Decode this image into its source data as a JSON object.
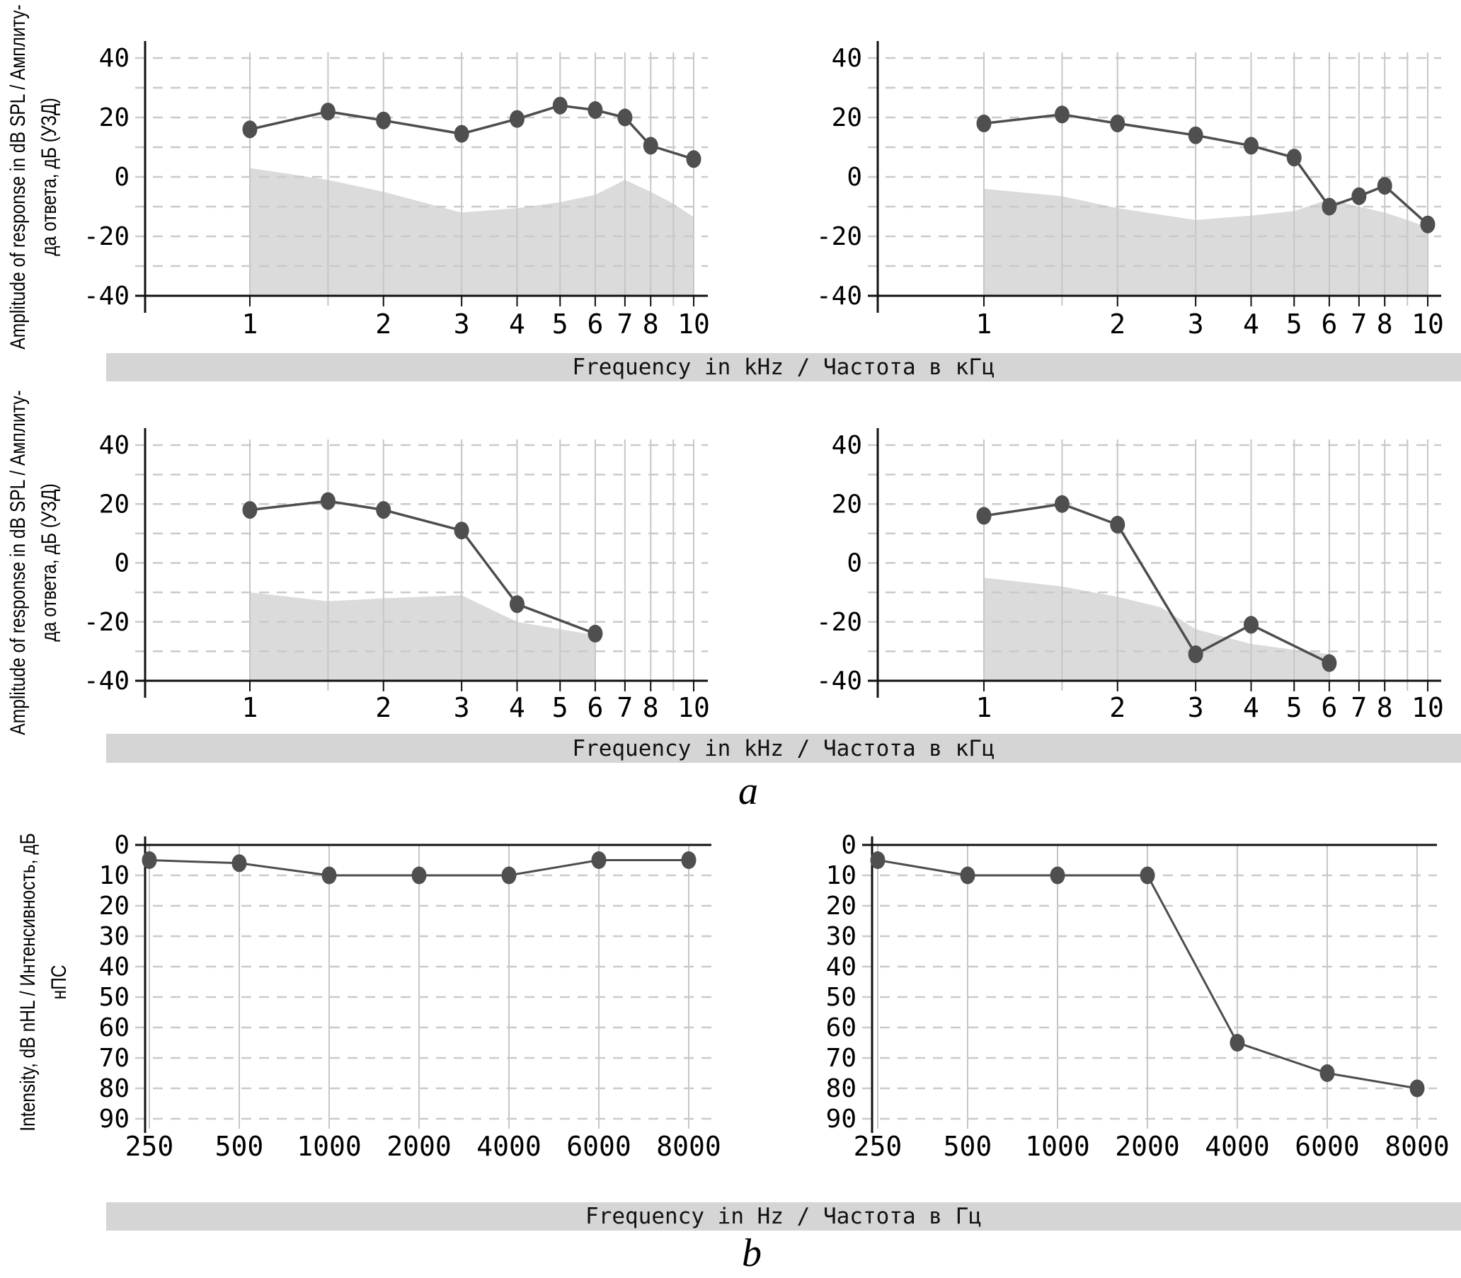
{
  "page": {
    "background": "#ffffff",
    "kind": "scientific figure with six audiology charts"
  },
  "colors": {
    "grid_vertical": "#c6c6c6",
    "grid_dashed": "#cacaca",
    "axis": "#111111",
    "series_line": "#4d4d4d",
    "marker_fill": "#4f4f4f",
    "noise_area_fill": "#dbdbdb",
    "band_background": "#d5d5d5",
    "text": "#000000"
  },
  "y_axis_labels": {
    "oae_row1": {
      "line1": "Amplitude of response in dB SPL / Амплиту-",
      "line2": "да ответа, дБ (УЗД)"
    },
    "oae_row2": {
      "line1": "Amplitude of response in dB SPL / Амплиту-",
      "line2": "да ответа, дБ (УЗД)"
    },
    "audiogram": {
      "line1": "Intensity, dB nHL / Интенсивность, дБ",
      "line2": "нПС"
    }
  },
  "x_axis_bands": {
    "row1": "Frequency in kHz / Частота в кГц",
    "row2": "Frequency in kHz / Частота в кГц",
    "row3": "Frequency in Hz / Частота в Гц"
  },
  "section_labels": {
    "a": "a",
    "b": "b"
  },
  "chart_data": [
    {
      "id": "oae-top-left",
      "type": "line",
      "x_scale": "log",
      "xlabel": "Frequency in kHz / Частота в кГц",
      "ylabel": "Amplitude of response in dB SPL / Амплитуда ответа, дБ (УЗД)",
      "xlim": [
        1,
        10
      ],
      "ylim": [
        -40,
        40
      ],
      "x_ticks_labeled": [
        1,
        2,
        3,
        4,
        5,
        6,
        7,
        8,
        10
      ],
      "x_gridlines": [
        1,
        1.5,
        2,
        3,
        4,
        5,
        6,
        7,
        8,
        9,
        10
      ],
      "y_ticks_labeled": [
        40,
        20,
        0,
        -20,
        -40
      ],
      "y_gridline_step": 10,
      "series": [
        {
          "name": "oae_response",
          "x": [
            1,
            1.5,
            2,
            3,
            4,
            5,
            6,
            7,
            8,
            10
          ],
          "y": [
            16,
            22,
            19,
            14.5,
            19.5,
            24,
            22.5,
            20,
            10.5,
            6
          ]
        }
      ],
      "noise_floor_area": {
        "x": [
          1,
          1.5,
          2,
          3,
          4,
          5,
          6,
          7,
          8,
          9,
          10
        ],
        "y": [
          3,
          -1,
          -5,
          -12,
          -10.5,
          -8.5,
          -6,
          -1,
          -5,
          -9,
          -13.5
        ]
      }
    },
    {
      "id": "oae-top-right",
      "type": "line",
      "x_scale": "log",
      "xlabel": "Frequency in kHz / Частота в кГц",
      "ylabel": "Amplitude of response in dB SPL / Амплитуда ответа, дБ (УЗД)",
      "xlim": [
        1,
        10
      ],
      "ylim": [
        -40,
        40
      ],
      "x_ticks_labeled": [
        1,
        2,
        3,
        4,
        5,
        6,
        7,
        8,
        10
      ],
      "x_gridlines": [
        1,
        1.5,
        2,
        3,
        4,
        5,
        6,
        7,
        8,
        9,
        10
      ],
      "y_ticks_labeled": [
        40,
        20,
        0,
        -20,
        -40
      ],
      "y_gridline_step": 10,
      "series": [
        {
          "name": "oae_response",
          "x": [
            1,
            1.5,
            2,
            3,
            4,
            5,
            6,
            7,
            8,
            10
          ],
          "y": [
            18,
            21,
            18,
            14,
            10.5,
            6.5,
            -10,
            -6.5,
            -3,
            -16
          ]
        }
      ],
      "noise_floor_area": {
        "x": [
          1,
          1.5,
          2,
          3,
          4,
          5,
          6,
          7,
          8,
          9,
          10
        ],
        "y": [
          -4,
          -6.5,
          -10.5,
          -14.5,
          -13,
          -11.5,
          -7.5,
          -10,
          -12,
          -14.5,
          -17
        ]
      }
    },
    {
      "id": "oae-middle-left",
      "type": "line",
      "x_scale": "log",
      "xlabel": "Frequency in kHz / Частота в кГц",
      "ylabel": "Amplitude of response in dB SPL / Амплитуда ответа, дБ (УЗД)",
      "xlim": [
        1,
        10
      ],
      "ylim": [
        -40,
        40
      ],
      "x_ticks_labeled": [
        1,
        2,
        3,
        4,
        5,
        6,
        7,
        8,
        10
      ],
      "x_gridlines": [
        1,
        1.5,
        2,
        3,
        4,
        5,
        6,
        7,
        8,
        9,
        10
      ],
      "y_ticks_labeled": [
        40,
        20,
        0,
        -20,
        -40
      ],
      "y_gridline_step": 10,
      "series": [
        {
          "name": "oae_response",
          "x": [
            1,
            1.5,
            2,
            3,
            4,
            6
          ],
          "y": [
            18,
            21,
            18,
            11,
            -14,
            -24
          ]
        }
      ],
      "noise_floor_area": {
        "x": [
          1,
          1.5,
          2,
          3,
          4,
          5,
          6
        ],
        "y": [
          -10,
          -13,
          -12,
          -11,
          -20,
          -22.5,
          -24.5
        ]
      }
    },
    {
      "id": "oae-middle-right",
      "type": "line",
      "x_scale": "log",
      "xlabel": "Frequency in kHz / Частота в кГц",
      "ylabel": "Amplitude of response in dB SPL / Амплитуда ответа, дБ (УЗД)",
      "xlim": [
        1,
        10
      ],
      "ylim": [
        -40,
        40
      ],
      "x_ticks_labeled": [
        1,
        2,
        3,
        4,
        5,
        6,
        7,
        8,
        10
      ],
      "x_gridlines": [
        1,
        1.5,
        2,
        3,
        4,
        5,
        6,
        7,
        8,
        9,
        10
      ],
      "y_ticks_labeled": [
        40,
        20,
        0,
        -20,
        -40
      ],
      "y_gridline_step": 10,
      "series": [
        {
          "name": "oae_response",
          "x": [
            1,
            1.5,
            2,
            3,
            4,
            6
          ],
          "y": [
            16,
            20,
            13,
            -31,
            -21,
            -34
          ]
        }
      ],
      "noise_floor_area": {
        "x": [
          1,
          1.5,
          2,
          2.5,
          3,
          4,
          5,
          6
        ],
        "y": [
          -5,
          -8,
          -11.5,
          -15,
          -22.5,
          -27.5,
          -29.5,
          -31
        ]
      }
    },
    {
      "id": "audiogram-bottom-left",
      "type": "line",
      "x_scale": "categorical",
      "xlabel": "Frequency in Hz / Частота в Гц",
      "ylabel": "Intensity, dB nHL / Интенсивность, дБ нПС",
      "ylim": [
        0,
        90
      ],
      "y_inverted": true,
      "categories": [
        250,
        500,
        1000,
        2000,
        4000,
        6000,
        8000
      ],
      "y_ticks_labeled": [
        0,
        10,
        20,
        30,
        40,
        50,
        60,
        70,
        80,
        90
      ],
      "y_gridline_step": 10,
      "series": [
        {
          "name": "hearing_threshold",
          "values": [
            5,
            6,
            10,
            10,
            10,
            5,
            5
          ]
        }
      ]
    },
    {
      "id": "audiogram-bottom-right",
      "type": "line",
      "x_scale": "categorical",
      "xlabel": "Frequency in Hz / Частота в Гц",
      "ylabel": "Intensity, dB nHL / Интенсивность, дБ нПС",
      "ylim": [
        0,
        90
      ],
      "y_inverted": true,
      "categories": [
        250,
        500,
        1000,
        2000,
        4000,
        6000,
        8000
      ],
      "y_ticks_labeled": [
        0,
        10,
        20,
        30,
        40,
        50,
        60,
        70,
        80,
        90
      ],
      "y_gridline_step": 10,
      "series": [
        {
          "name": "hearing_threshold",
          "values": [
            5,
            10,
            10,
            10,
            65,
            75,
            80
          ]
        }
      ]
    }
  ]
}
